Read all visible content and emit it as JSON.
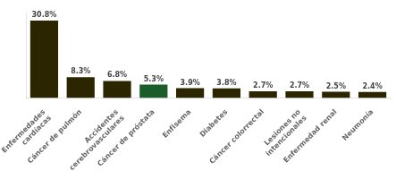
{
  "chart_data": {
    "type": "bar",
    "categories": [
      "Enfermedades\ncardíacas",
      "Cáncer de pulmón",
      "Accidentes\ncerebrovasculares",
      "Cáncer de próstata",
      "Enfisema",
      "Diabetes",
      "Cáncer colorrectal",
      "Lesiones no\nintencionales",
      "Enfermedad renal",
      "Neumonía"
    ],
    "values": [
      30.8,
      8.3,
      6.8,
      5.3,
      3.9,
      3.8,
      2.7,
      2.7,
      2.5,
      2.4
    ],
    "value_labels": [
      "30.8%",
      "8.3%",
      "6.8%",
      "5.3%",
      "3.9%",
      "3.8%",
      "2.7%",
      "2.7%",
      "2.5%",
      "2.4%"
    ],
    "colors": [
      "#2b2600",
      "#2b2600",
      "#2b2600",
      "#1a5c2a",
      "#2b2600",
      "#2b2600",
      "#2b2600",
      "#2b2600",
      "#2b2600",
      "#2b2600"
    ],
    "ylim": [
      0,
      34
    ],
    "grid": false,
    "data_labels": true,
    "tick_labels": "x"
  }
}
